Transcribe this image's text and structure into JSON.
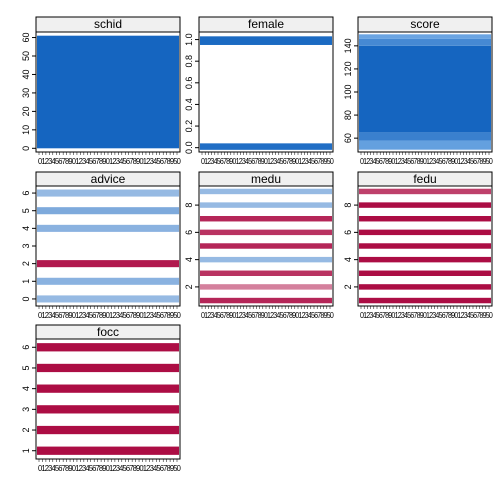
{
  "colors": {
    "blue": "#1565c0",
    "light_blue": "#8fbff0",
    "crimson": "#a8003a",
    "strip_bg": "#f0f0f0",
    "axis": "#000000"
  },
  "chart_data": [
    {
      "type": "scatter",
      "title": "schid",
      "xtick_text": "012345678901234567890123456789012345678950",
      "yticks": [
        0,
        10,
        20,
        30,
        40,
        50,
        60
      ],
      "ylim": [
        -2,
        63
      ],
      "bands": [
        {
          "from": 0,
          "to": 61,
          "level": 1.0
        }
      ],
      "grid": false
    },
    {
      "type": "scatter",
      "title": "female",
      "xtick_text": "012345678901234567890123456789012345678950",
      "yticks": [
        0.0,
        0.2,
        0.4,
        0.6,
        0.8,
        1.0
      ],
      "ylim": [
        -0.04,
        1.07
      ],
      "bands": [
        {
          "from": -0.02,
          "to": 0.04,
          "level": 0.9
        },
        {
          "from": 0.95,
          "to": 1.03,
          "level": 0.95
        }
      ],
      "grid": false
    },
    {
      "type": "scatter",
      "title": "score",
      "xtick_text": "012345678901234567890123456789012345678950",
      "yticks": [
        60,
        80,
        100,
        120,
        140
      ],
      "ylim": [
        48,
        152
      ],
      "bands": [
        {
          "from": 50,
          "to": 58,
          "level": 0.35
        },
        {
          "from": 58,
          "to": 65,
          "level": 0.7
        },
        {
          "from": 65,
          "to": 140,
          "level": 1.0
        },
        {
          "from": 140,
          "to": 146,
          "level": 0.6
        },
        {
          "from": 146,
          "to": 150,
          "level": 0.3
        }
      ],
      "grid": false
    },
    {
      "type": "scatter",
      "title": "advice",
      "xtick_text": "012345678901234567890123456789012345678950",
      "yticks": [
        0,
        1,
        2,
        3,
        4,
        5,
        6
      ],
      "ylim": [
        -0.4,
        6.4
      ],
      "bands": [
        {
          "from": -0.2,
          "to": 0.2,
          "level": 0.2
        },
        {
          "from": 0.8,
          "to": 1.2,
          "level": 0.5
        },
        {
          "from": 1.8,
          "to": 2.2,
          "level": 0.9
        },
        {
          "from": 3.8,
          "to": 4.2,
          "level": 0.5
        },
        {
          "from": 4.8,
          "to": 5.2,
          "level": 0.55
        },
        {
          "from": 5.8,
          "to": 6.2,
          "level": 0.35
        }
      ],
      "grid": false
    },
    {
      "type": "scatter",
      "title": "medu",
      "xtick_text": "012345678901234567890123456789012345678950",
      "yticks": [
        2,
        4,
        6,
        8
      ],
      "ylim": [
        0.6,
        9.4
      ],
      "bands": [
        {
          "from": 0.8,
          "to": 1.2,
          "level": 0.85
        },
        {
          "from": 1.8,
          "to": 2.2,
          "level": 0.5
        },
        {
          "from": 2.8,
          "to": 3.2,
          "level": 0.8
        },
        {
          "from": 3.8,
          "to": 4.2,
          "level": 0.35
        },
        {
          "from": 4.8,
          "to": 5.2,
          "level": 0.85
        },
        {
          "from": 5.8,
          "to": 6.2,
          "level": 0.8
        },
        {
          "from": 6.8,
          "to": 7.2,
          "level": 0.85
        },
        {
          "from": 7.8,
          "to": 8.2,
          "level": 0.3
        },
        {
          "from": 8.8,
          "to": 9.2,
          "level": 0.35
        }
      ],
      "grid": false
    },
    {
      "type": "scatter",
      "title": "fedu",
      "xtick_text": "012345678901234567890123456789012345678950",
      "yticks": [
        2,
        4,
        6,
        8
      ],
      "ylim": [
        0.6,
        9.4
      ],
      "bands": [
        {
          "from": 0.8,
          "to": 1.2,
          "level": 0.95
        },
        {
          "from": 1.8,
          "to": 2.2,
          "level": 0.95
        },
        {
          "from": 2.8,
          "to": 3.2,
          "level": 0.95
        },
        {
          "from": 3.8,
          "to": 4.2,
          "level": 0.95
        },
        {
          "from": 4.8,
          "to": 5.2,
          "level": 0.95
        },
        {
          "from": 5.8,
          "to": 6.2,
          "level": 0.95
        },
        {
          "from": 6.8,
          "to": 7.2,
          "level": 0.95
        },
        {
          "from": 7.8,
          "to": 8.2,
          "level": 0.95
        },
        {
          "from": 8.8,
          "to": 9.2,
          "level": 0.75
        }
      ],
      "grid": false
    },
    {
      "type": "scatter",
      "title": "focc",
      "xtick_text": "012345678901234567890123456789012345678950",
      "yticks": [
        1,
        2,
        3,
        4,
        5,
        6
      ],
      "ylim": [
        0.6,
        6.4
      ],
      "bands": [
        {
          "from": 0.8,
          "to": 1.2,
          "level": 0.95
        },
        {
          "from": 1.8,
          "to": 2.2,
          "level": 0.95
        },
        {
          "from": 2.8,
          "to": 3.2,
          "level": 0.95
        },
        {
          "from": 3.8,
          "to": 4.2,
          "level": 0.95
        },
        {
          "from": 4.8,
          "to": 5.2,
          "level": 0.95
        },
        {
          "from": 5.8,
          "to": 6.2,
          "level": 0.95
        }
      ],
      "grid": false
    }
  ]
}
